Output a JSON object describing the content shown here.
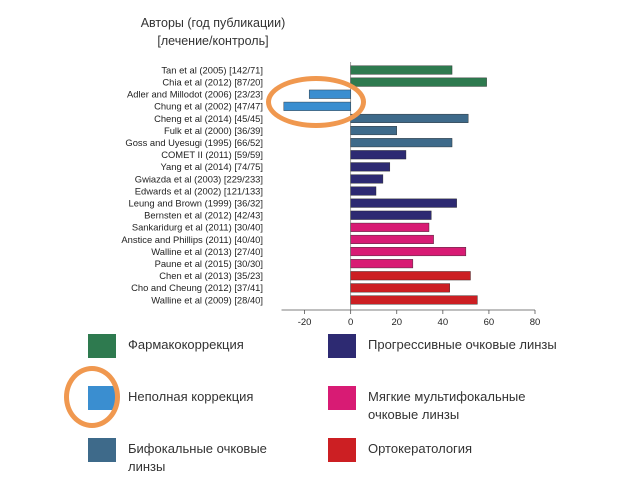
{
  "chart_data": {
    "type": "bar",
    "orientation": "horizontal",
    "title": "Авторы (год публикации)",
    "subtitle": "[лечение/контроль]",
    "xlim": [
      -35,
      80
    ],
    "xticks": [
      "-20",
      "0",
      "20",
      "40",
      "60",
      "80"
    ],
    "categories": [
      "Tan et al (2005) [142/71]",
      "Chia et al (2012) [87/20]",
      "Adler and Millodot (2006) [23/23]",
      "Chung et al (2002) [47/47]",
      "Cheng et al (2014) [45/45]",
      "Fulk et al (2000) [36/39]",
      "Goss and Uyesugi (1995) [66/52]",
      "COMET II (2011) [59/59]",
      "Yang et al (2014) [74/75]",
      "Gwiazda et al (2003) [229/233]",
      "Edwards et al (2002) [121/133]",
      "Leung and Brown (1999) [36/32]",
      "Bernsten et al (2012) [42/43]",
      "Sankaridurg et al (2011) [30/40]",
      "Anstice and Phillips (2011) [40/40]",
      "Walline et al (2013) [27/40]",
      "Paune et al (2015) [30/30]",
      "Chen  et al (2013) [35/23]",
      "Cho and Cheung (2012) [37/41]",
      "Walline et al (2009) [28/40]"
    ],
    "values": [
      44,
      59,
      -18,
      -29,
      51,
      20,
      44,
      24,
      17,
      14,
      11,
      46,
      35,
      34,
      36,
      50,
      27,
      52,
      43,
      55
    ],
    "groups": [
      "pharmacological",
      "pharmacological",
      "under-correction",
      "under-correction",
      "bifocal",
      "bifocal",
      "bifocal",
      "progressive",
      "progressive",
      "progressive",
      "progressive",
      "progressive",
      "progressive",
      "multifocal-soft",
      "multifocal-soft",
      "multifocal-soft",
      "multifocal-soft",
      "orthokeratology",
      "orthokeratology",
      "orthokeratology"
    ],
    "colors": {
      "pharmacological": "#2e7a4f",
      "under-correction": "#3a8ed0",
      "bifocal": "#3e6a8a",
      "progressive": "#2d2a72",
      "multifocal-soft": "#d81b74",
      "orthokeratology": "#cc1f23"
    },
    "legend": [
      {
        "label": "Фармакокоррекция",
        "group": "pharmacological",
        "color": "#2e7a4f"
      },
      {
        "label": "Прогрессивные очковые линзы",
        "group": "progressive",
        "color": "#2d2a72"
      },
      {
        "label": "Неполная коррекция",
        "group": "under-correction",
        "color": "#3a8ed0"
      },
      {
        "label": "Мягкие мультифокальные очковые линзы",
        "group": "multifocal-soft",
        "color": "#d81b74"
      },
      {
        "label": "Бифокальные очковые линзы",
        "group": "bifocal",
        "color": "#3e6a8a"
      },
      {
        "label": "Ортокератология",
        "group": "orthokeratology",
        "color": "#cc1f23"
      }
    ],
    "highlight_color": "#f0984f"
  }
}
